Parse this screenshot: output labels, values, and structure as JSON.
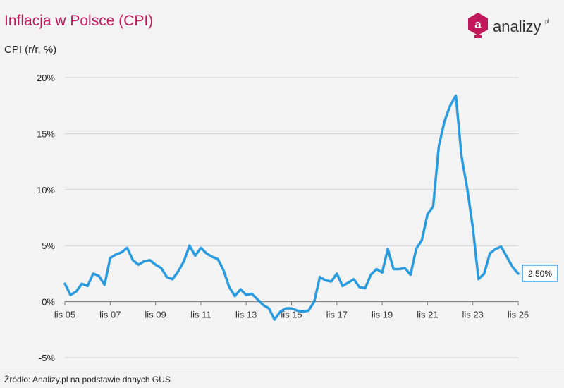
{
  "title": "Inflacja w Polsce (CPI)",
  "logo": {
    "text": "analizy",
    "suffix": "pl",
    "icon": "analizy-logo-icon"
  },
  "source": "Źródło: Analizy.pl na podstawie danych GUS",
  "colors": {
    "title": "#c2185b",
    "line": "#2b9be0",
    "logo": "#c2185b"
  },
  "chart_data": {
    "type": "line",
    "title": "Inflacja w Polsce (CPI)",
    "ylabel": "CPI (r/r, %)",
    "xlabel": "",
    "ylim": [
      -5,
      20
    ],
    "yticks": [
      -5,
      0,
      5,
      10,
      15,
      20
    ],
    "ytick_labels": [
      "-5%",
      "0%",
      "5%",
      "10%",
      "15%",
      "20%"
    ],
    "xlim": [
      "2005-11",
      "2025-11"
    ],
    "xticks": [
      "2005-11",
      "2007-11",
      "2009-11",
      "2011-11",
      "2013-11",
      "2015-11",
      "2017-11",
      "2019-11",
      "2021-11",
      "2023-11",
      "2025-11"
    ],
    "xtick_labels": [
      "lis 05",
      "lis 07",
      "lis 09",
      "lis 11",
      "lis 13",
      "lis 15",
      "lis 17",
      "lis 19",
      "lis 21",
      "lis 23",
      "lis 25"
    ],
    "grid": "horizontal",
    "end_label": "2,50%",
    "series": [
      {
        "x": [
          "2005-11",
          "2006-02",
          "2006-05",
          "2006-08",
          "2006-11",
          "2007-02",
          "2007-05",
          "2007-08",
          "2007-11",
          "2008-02",
          "2008-05",
          "2008-08",
          "2008-11",
          "2009-02",
          "2009-05",
          "2009-08",
          "2009-11",
          "2010-02",
          "2010-05",
          "2010-08",
          "2010-11",
          "2011-02",
          "2011-05",
          "2011-08",
          "2011-11",
          "2012-02",
          "2012-05",
          "2012-08",
          "2012-11",
          "2013-02",
          "2013-05",
          "2013-08",
          "2013-11",
          "2014-02",
          "2014-05",
          "2014-08",
          "2014-11",
          "2015-02",
          "2015-05",
          "2015-08",
          "2015-11",
          "2016-02",
          "2016-05",
          "2016-08",
          "2016-11",
          "2017-02",
          "2017-05",
          "2017-08",
          "2017-11",
          "2018-02",
          "2018-05",
          "2018-08",
          "2018-11",
          "2019-02",
          "2019-05",
          "2019-08",
          "2019-11",
          "2020-02",
          "2020-05",
          "2020-08",
          "2020-11",
          "2021-02",
          "2021-05",
          "2021-08",
          "2021-11",
          "2022-02",
          "2022-05",
          "2022-08",
          "2022-11",
          "2023-02",
          "2023-05",
          "2023-08",
          "2023-11",
          "2024-02",
          "2024-05",
          "2024-08",
          "2024-11",
          "2025-02",
          "2025-05",
          "2025-08",
          "2025-11"
        ],
        "values": [
          1.6,
          0.6,
          0.9,
          1.6,
          1.4,
          2.5,
          2.3,
          1.5,
          3.9,
          4.2,
          4.4,
          4.8,
          3.7,
          3.3,
          3.6,
          3.7,
          3.3,
          3.0,
          2.2,
          2.0,
          2.7,
          3.6,
          5.0,
          4.1,
          4.8,
          4.3,
          4.0,
          3.8,
          2.8,
          1.3,
          0.5,
          1.1,
          0.6,
          0.7,
          0.2,
          -0.3,
          -0.6,
          -1.6,
          -0.9,
          -0.6,
          -0.6,
          -0.8,
          -0.9,
          -0.8,
          0.0,
          2.2,
          1.9,
          1.8,
          2.5,
          1.4,
          1.7,
          2.0,
          1.3,
          1.2,
          2.4,
          2.9,
          2.6,
          4.7,
          2.9,
          2.9,
          3.0,
          2.4,
          4.7,
          5.5,
          7.8,
          8.5,
          13.9,
          16.1,
          17.5,
          18.4,
          13.0,
          10.1,
          6.6,
          2.0,
          2.5,
          4.3,
          4.7,
          4.9,
          4.0,
          3.1,
          2.5
        ]
      }
    ]
  }
}
